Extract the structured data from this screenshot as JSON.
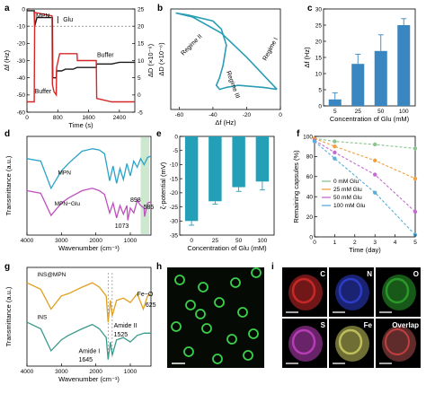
{
  "colors": {
    "qcm_f": "#1a1a1a",
    "qcm_d": "#d62728",
    "dd_curve": "#2a9db5",
    "bar": "#3a86c0",
    "bar_teal": "#23a0b8",
    "ftir_mpn": "#2aa3c8",
    "ftir_mpnglu": "#c04fc0",
    "band": "#bfe3c4",
    "ins_mpn": "#e0a020",
    "ins": "#3a9a8c",
    "s0": "#8ac490",
    "s25": "#f0a040",
    "s50": "#c36ad0",
    "s100": "#5aaed8",
    "map_c": "#d02a2a",
    "map_n": "#3040d0",
    "map_o": "#2ca02c",
    "map_s": "#c040c0",
    "map_fe": "#c8c860"
  },
  "chart_data": [
    {
      "id": "a",
      "type": "line",
      "panel_label": "a",
      "xlabel": "Time (s)",
      "ylabel_left": "Δf (Hz)",
      "ylabel_right": "ΔD (×10⁻⁶)",
      "xlim": [
        0,
        2800
      ],
      "ylim_left": [
        -60,
        0
      ],
      "ylim_right": [
        -5,
        25
      ],
      "xticks": [
        0,
        800,
        1600,
        2400
      ],
      "yticks_left": [
        -60,
        -50,
        -40,
        -30,
        -20,
        -10,
        0
      ],
      "yticks_right": [
        -5,
        0,
        5,
        10,
        15,
        20,
        25
      ],
      "annotations": [
        "MPN",
        "Glu",
        "Buffer",
        "Buffer"
      ],
      "series": [
        {
          "axis": "left",
          "color_key": "qcm_f",
          "x": [
            0,
            190,
            200,
            260,
            660,
            670,
            760,
            770,
            900,
            1000,
            1200,
            1300,
            1310,
            1700,
            1800,
            1810,
            2200,
            2400,
            2800
          ],
          "y": [
            -1,
            -1,
            -10,
            -5,
            -5,
            -40,
            -40,
            -36,
            -36,
            -35,
            -35,
            -34,
            -34,
            -34,
            -34,
            -32,
            -32,
            -31,
            -31
          ]
        },
        {
          "axis": "right",
          "color_key": "qcm_d",
          "x": [
            0,
            190,
            200,
            650,
            660,
            700,
            760,
            770,
            850,
            1150,
            1300,
            1310,
            1500,
            1800,
            1810,
            2200,
            2800
          ],
          "y": [
            -2,
            -2,
            24,
            23,
            3,
            1,
            0,
            8,
            12,
            12,
            12,
            10,
            10,
            10,
            -1,
            -2,
            -2
          ]
        }
      ]
    },
    {
      "id": "b",
      "type": "line",
      "panel_label": "b",
      "xlabel": "Δf (Hz)",
      "ylabel": "ΔD (×10⁻⁶)",
      "xlim": [
        -65,
        0
      ],
      "xticks": [
        -60,
        -40,
        -20,
        0
      ],
      "ylim": [
        -5,
        20
      ],
      "annotations": [
        "Regime I",
        "Regime II",
        "Regime III"
      ],
      "series": [
        {
          "color_key": "dd_curve",
          "x": [
            -2,
            -20,
            -35,
            -52,
            -62,
            -55,
            -40,
            -35,
            -32,
            -34,
            -36,
            -38,
            -36,
            -32,
            -25,
            -10,
            -2
          ],
          "y": [
            0,
            8,
            14,
            18,
            19,
            18.5,
            17,
            15,
            11,
            6,
            3,
            1,
            0,
            0.5,
            1,
            0.5,
            0
          ]
        }
      ]
    },
    {
      "id": "c",
      "type": "bar",
      "panel_label": "c",
      "xlabel": "Concentration of Glu (mM)",
      "ylabel": "Δf (Hz)",
      "categories": [
        "5",
        "25",
        "50",
        "100"
      ],
      "values": [
        2,
        13,
        17,
        25
      ],
      "errors": [
        2,
        3,
        5,
        2
      ],
      "ylim": [
        0,
        30
      ],
      "yticks": [
        0,
        5,
        10,
        15,
        20,
        25,
        30
      ]
    },
    {
      "id": "d",
      "type": "line",
      "panel_label": "d",
      "xlabel": "Wavenumber (cm⁻¹)",
      "ylabel": "Transmittance (a.u.)",
      "xlim": [
        4000,
        400
      ],
      "xticks": [
        4000,
        3000,
        2000,
        1000
      ],
      "annotations": [
        "898",
        "585",
        "1073"
      ],
      "series": [
        {
          "name": "MPN",
          "color_key": "ftir_mpn",
          "x": [
            4000,
            3600,
            3300,
            3000,
            2800,
            2400,
            2100,
            1900,
            1750,
            1600,
            1500,
            1400,
            1300,
            1200,
            1100,
            1000,
            900,
            800,
            700,
            600,
            500,
            400
          ],
          "y": [
            62,
            60,
            38,
            52,
            58,
            68,
            70,
            69,
            66,
            44,
            56,
            42,
            54,
            45,
            58,
            48,
            60,
            55,
            62,
            57,
            63,
            64
          ]
        },
        {
          "name": "MPN−Glu",
          "color_key": "ftir_mpnglu",
          "x": [
            4000,
            3600,
            3300,
            3000,
            2800,
            2400,
            2100,
            1900,
            1750,
            1600,
            1500,
            1400,
            1300,
            1200,
            1100,
            1073,
            1000,
            898,
            800,
            700,
            600,
            585,
            500,
            400
          ],
          "y": [
            36,
            34,
            16,
            26,
            30,
            36,
            38,
            36,
            33,
            18,
            26,
            14,
            24,
            17,
            24,
            12,
            22,
            18,
            28,
            24,
            22,
            15,
            26,
            27
          ]
        }
      ]
    },
    {
      "id": "e",
      "type": "bar",
      "panel_label": "e",
      "xlabel": "Concentration of Glu (mM)",
      "ylabel": "ζ-potential (mV)",
      "categories": [
        "0",
        "25",
        "50",
        "100"
      ],
      "values": [
        -30,
        -23,
        -18,
        -16
      ],
      "errors": [
        1.5,
        1,
        1.5,
        3
      ],
      "ylim": [
        -35,
        0
      ],
      "yticks": [
        -35,
        -30,
        -25,
        -20,
        -15,
        -10,
        -5,
        0
      ]
    },
    {
      "id": "f",
      "type": "line",
      "panel_label": "f",
      "xlabel": "Time (day)",
      "ylabel": "Remaining capsules (%)",
      "xlim": [
        0,
        5
      ],
      "ylim": [
        0,
        100
      ],
      "xticks": [
        0,
        1,
        2,
        3,
        4,
        5
      ],
      "yticks": [
        0,
        20,
        40,
        60,
        80,
        100
      ],
      "x": [
        0,
        1,
        3,
        5
      ],
      "series": [
        {
          "name": "0 mM Glu",
          "color_key": "s0",
          "values": [
            98,
            95,
            92,
            88
          ]
        },
        {
          "name": "25 mM Glu",
          "color_key": "s25",
          "values": [
            98,
            90,
            76,
            58
          ]
        },
        {
          "name": "50 mM Glu",
          "color_key": "s50",
          "values": [
            96,
            84,
            62,
            25
          ]
        },
        {
          "name": "100 mM Glu",
          "color_key": "s100",
          "values": [
            95,
            78,
            44,
            2
          ]
        }
      ]
    },
    {
      "id": "g",
      "type": "line",
      "panel_label": "g",
      "xlabel": "Wavenumber (cm⁻¹)",
      "ylabel": "Transmittance (a.u.)",
      "xlim": [
        4000,
        400
      ],
      "xticks": [
        4000,
        3000,
        2000,
        1000
      ],
      "annotations": [
        "Fe−O",
        "625",
        "Amide II",
        "1525",
        "Amide I",
        "1645"
      ],
      "series": [
        {
          "name": "INS@MPN",
          "color_key": "ins_mpn",
          "x": [
            4000,
            3600,
            3300,
            3000,
            2800,
            2400,
            2100,
            1900,
            1700,
            1645,
            1580,
            1525,
            1400,
            1200,
            1000,
            800,
            625,
            500,
            400
          ],
          "y": [
            76,
            70,
            52,
            64,
            66,
            72,
            76,
            72,
            64,
            40,
            60,
            46,
            60,
            62,
            58,
            66,
            52,
            64,
            66
          ]
        },
        {
          "name": "INS",
          "color_key": "ins",
          "x": [
            4000,
            3600,
            3300,
            3000,
            2800,
            2400,
            2100,
            1900,
            1700,
            1645,
            1580,
            1525,
            1400,
            1200,
            1000,
            800,
            600,
            400
          ],
          "y": [
            40,
            34,
            14,
            24,
            28,
            34,
            38,
            34,
            26,
            6,
            22,
            10,
            24,
            26,
            22,
            28,
            30,
            30
          ]
        }
      ]
    }
  ],
  "panels": {
    "h": {
      "label": "h",
      "description_id": "fluorescence-micrograph"
    },
    "i": {
      "label": "i",
      "maps": [
        {
          "element": "C",
          "color_key": "map_c"
        },
        {
          "element": "N",
          "color_key": "map_n"
        },
        {
          "element": "O",
          "color_key": "map_o"
        },
        {
          "element": "S",
          "color_key": "map_s"
        },
        {
          "element": "Fe",
          "color_key": "map_fe"
        },
        {
          "element": "Overlap",
          "color_key": "map_c"
        }
      ]
    }
  }
}
